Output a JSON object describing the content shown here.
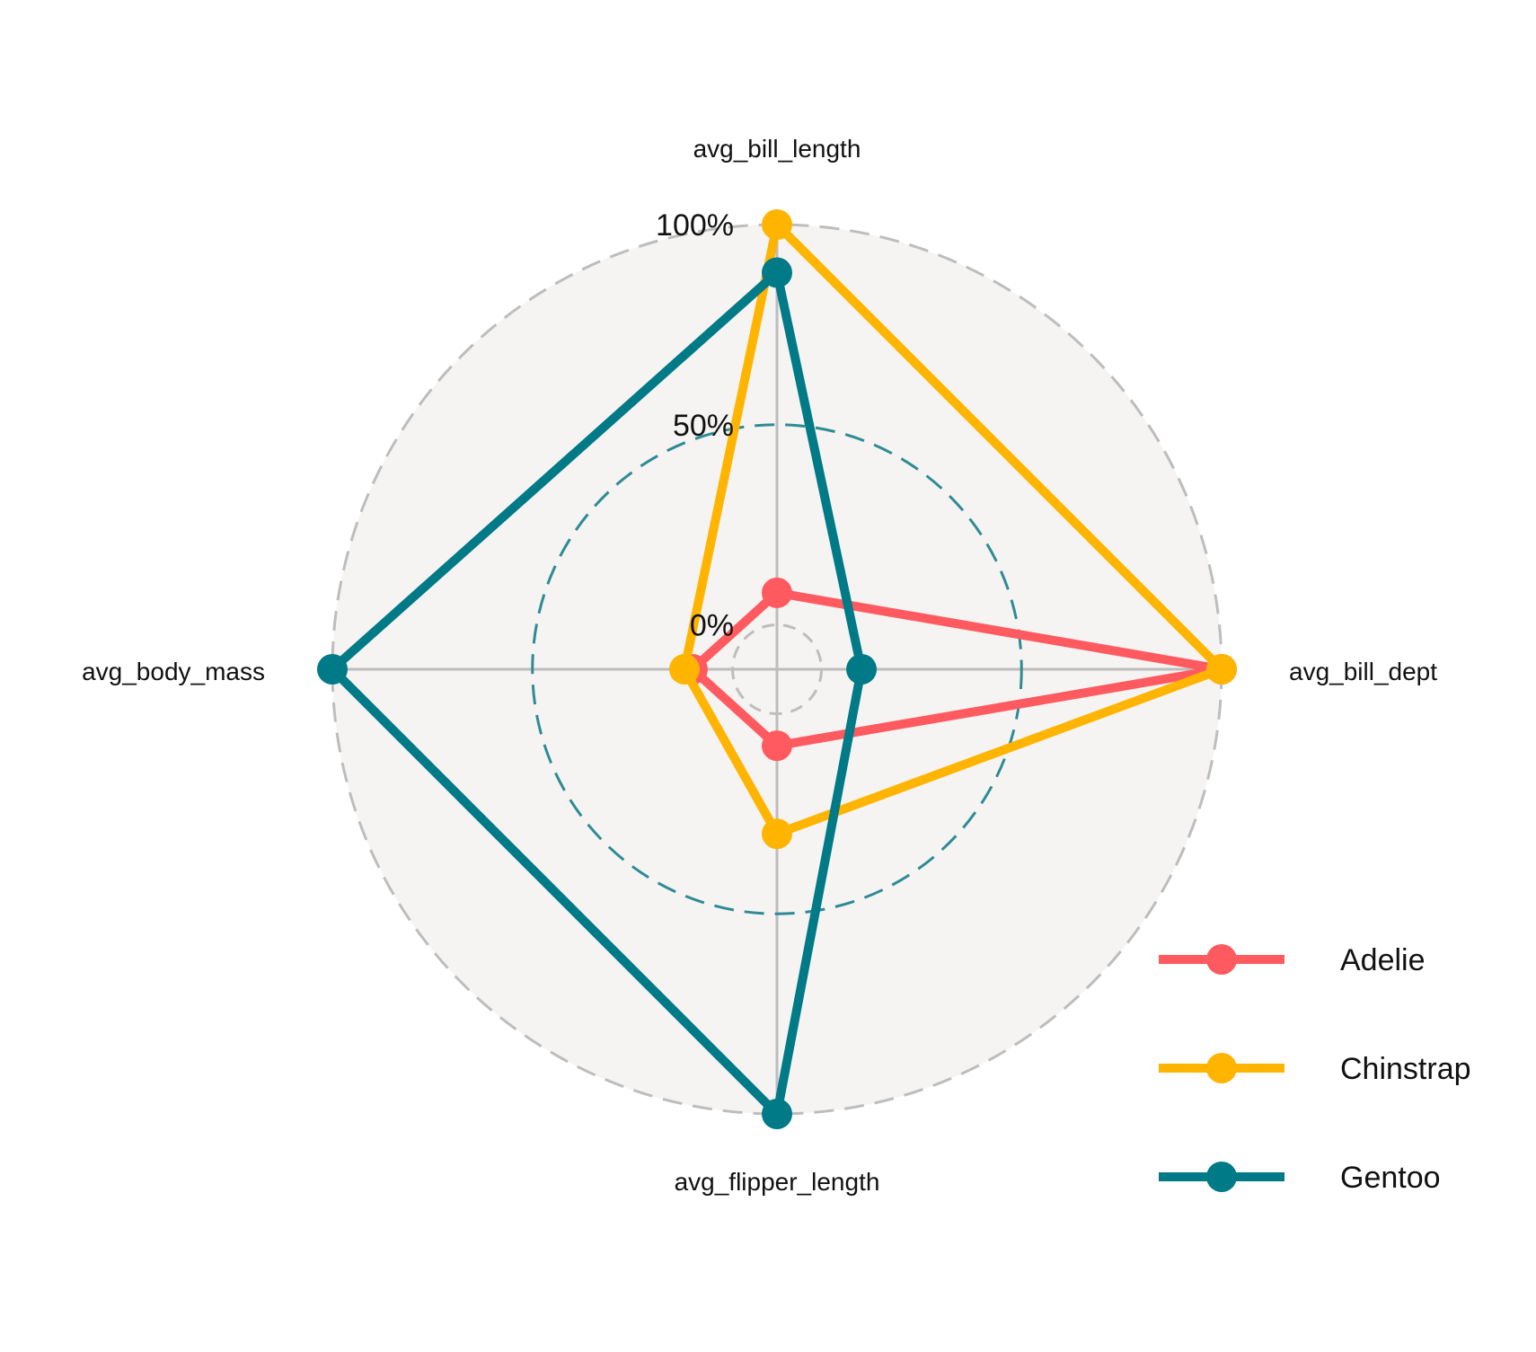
{
  "chart_data": {
    "type": "radar",
    "axes": [
      "avg_bill_length",
      "avg_bill_dept",
      "avg_flipper_length",
      "avg_body_mass"
    ],
    "gridline_labels": [
      "0%",
      "50%",
      "100%"
    ],
    "range": [
      0,
      100
    ],
    "series": [
      {
        "name": "Adelie",
        "color": "#FF5A5F",
        "values": [
          8,
          100,
          8,
          10
        ]
      },
      {
        "name": "Chinstrap",
        "color": "#FFB400",
        "values": [
          100,
          100,
          30,
          12
        ]
      },
      {
        "name": "Gentoo",
        "color": "#007A87",
        "values": [
          88,
          10,
          100,
          100
        ]
      }
    ],
    "legend_position": "bottom-right",
    "background_color": "#F5F4F2",
    "grid_color": "#BDBDBD",
    "mid_grid_color": "#2E8B95"
  }
}
